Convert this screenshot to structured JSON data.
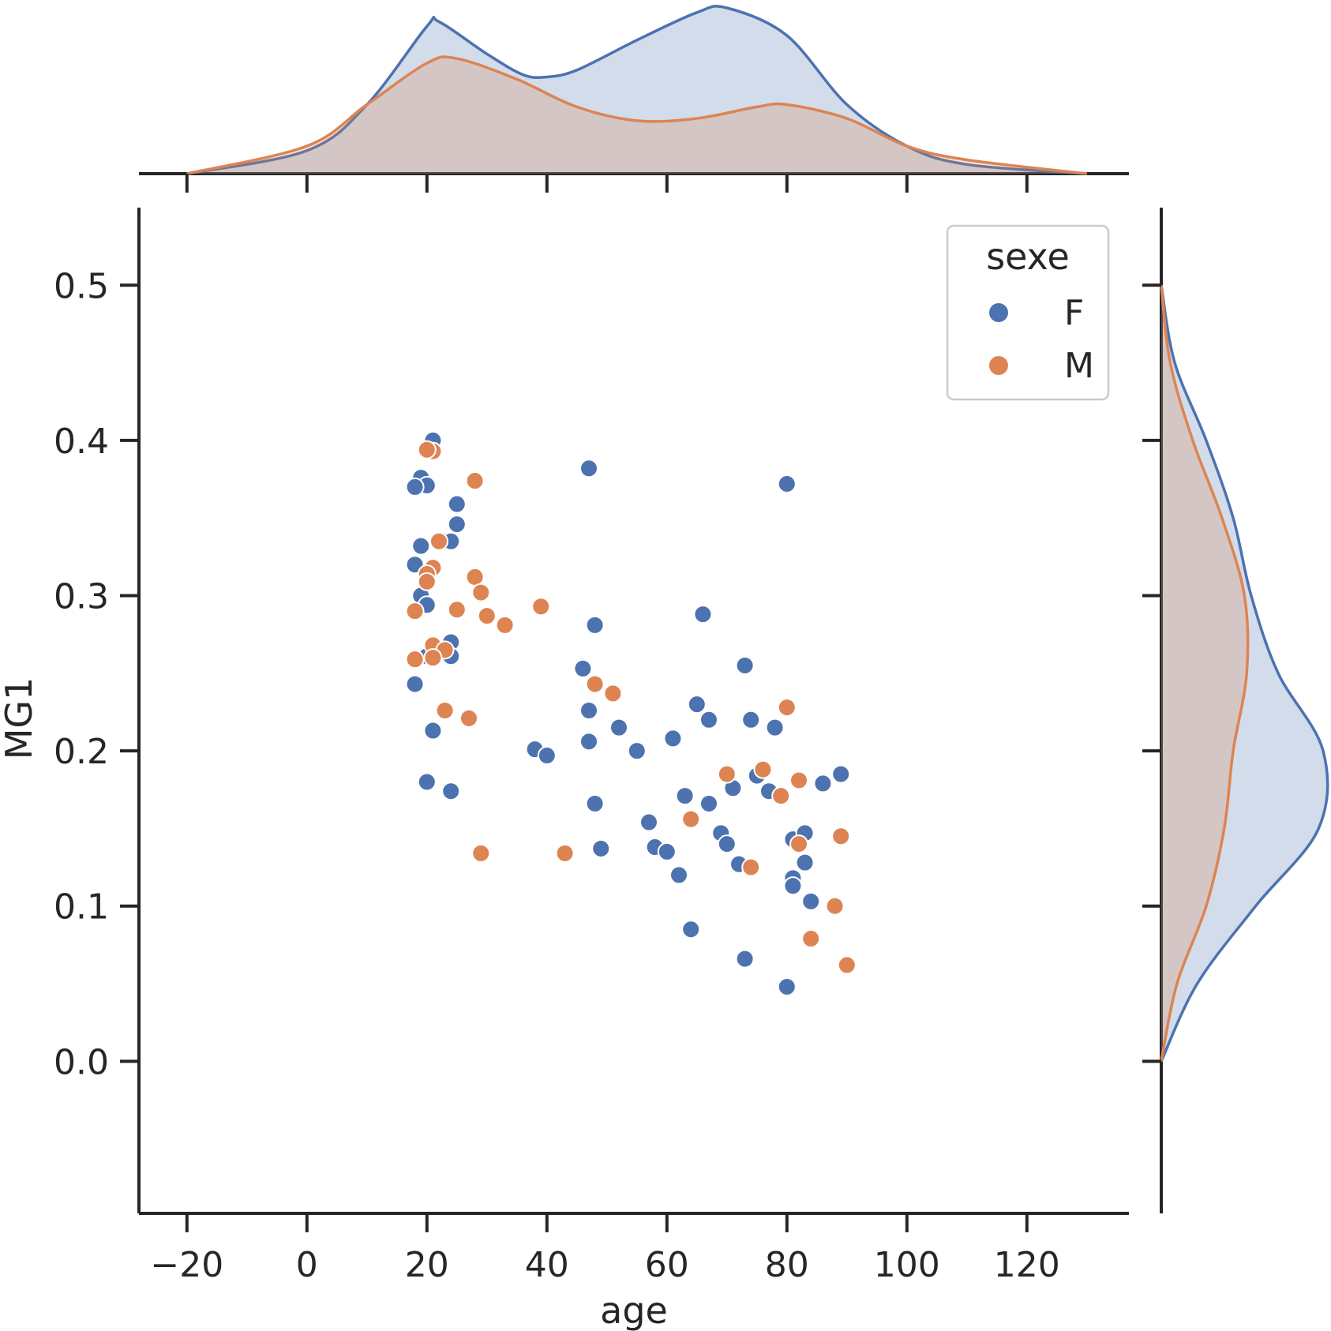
{
  "colors": {
    "F": "#4c72b0",
    "M": "#dd8452",
    "axis": "#262626",
    "text": "#262626"
  },
  "chart_data": {
    "type": "scatter",
    "xlabel": "age",
    "ylabel": "MG1",
    "xlim": [
      -28,
      137
    ],
    "ylim": [
      -0.098,
      0.55
    ],
    "xticks": [
      -20,
      0,
      20,
      40,
      60,
      80,
      100,
      120
    ],
    "xtick_labels": [
      "−20",
      "0",
      "20",
      "40",
      "60",
      "80",
      "100",
      "120"
    ],
    "yticks": [
      0.0,
      0.1,
      0.2,
      0.3,
      0.4,
      0.5
    ],
    "ytick_labels": [
      "0.0",
      "0.1",
      "0.2",
      "0.3",
      "0.4",
      "0.5"
    ],
    "grid": false,
    "legend": {
      "title": "sexe",
      "placement": "top-right",
      "entries": [
        {
          "label": "F",
          "color": "#4c72b0"
        },
        {
          "label": "M",
          "color": "#dd8452"
        }
      ]
    },
    "series": [
      {
        "name": "F",
        "color": "#4c72b0",
        "points": [
          [
            21,
            0.4
          ],
          [
            19,
            0.376
          ],
          [
            20,
            0.371
          ],
          [
            18,
            0.37
          ],
          [
            25,
            0.359
          ],
          [
            25,
            0.346
          ],
          [
            23,
            0.335
          ],
          [
            24,
            0.335
          ],
          [
            19,
            0.332
          ],
          [
            18,
            0.32
          ],
          [
            19,
            0.3
          ],
          [
            20,
            0.294
          ],
          [
            24,
            0.27
          ],
          [
            20,
            0.261
          ],
          [
            24,
            0.261
          ],
          [
            18,
            0.243
          ],
          [
            21,
            0.213
          ],
          [
            20,
            0.18
          ],
          [
            24,
            0.174
          ],
          [
            47,
            0.382
          ],
          [
            48,
            0.281
          ],
          [
            46,
            0.253
          ],
          [
            47,
            0.226
          ],
          [
            47,
            0.206
          ],
          [
            38,
            0.201
          ],
          [
            40,
            0.197
          ],
          [
            48,
            0.166
          ],
          [
            49,
            0.137
          ],
          [
            52,
            0.215
          ],
          [
            55,
            0.2
          ],
          [
            61,
            0.208
          ],
          [
            57,
            0.154
          ],
          [
            58,
            0.138
          ],
          [
            60,
            0.135
          ],
          [
            62,
            0.12
          ],
          [
            64,
            0.085
          ],
          [
            66,
            0.288
          ],
          [
            65,
            0.23
          ],
          [
            67,
            0.22
          ],
          [
            63,
            0.171
          ],
          [
            67,
            0.166
          ],
          [
            69,
            0.147
          ],
          [
            70,
            0.14
          ],
          [
            72,
            0.127
          ],
          [
            73,
            0.066
          ],
          [
            73,
            0.255
          ],
          [
            74,
            0.22
          ],
          [
            78,
            0.215
          ],
          [
            75,
            0.184
          ],
          [
            71,
            0.176
          ],
          [
            77,
            0.174
          ],
          [
            80,
            0.372
          ],
          [
            80,
            0.048
          ],
          [
            81,
            0.143
          ],
          [
            81,
            0.118
          ],
          [
            81,
            0.113
          ],
          [
            83,
            0.147
          ],
          [
            83,
            0.128
          ],
          [
            84,
            0.103
          ],
          [
            86,
            0.179
          ],
          [
            89,
            0.185
          ]
        ]
      },
      {
        "name": "M",
        "color": "#dd8452",
        "points": [
          [
            21,
            0.393
          ],
          [
            20,
            0.394
          ],
          [
            28,
            0.374
          ],
          [
            22,
            0.335
          ],
          [
            21,
            0.318
          ],
          [
            20,
            0.314
          ],
          [
            20,
            0.309
          ],
          [
            28,
            0.312
          ],
          [
            29,
            0.302
          ],
          [
            25,
            0.291
          ],
          [
            18,
            0.29
          ],
          [
            30,
            0.287
          ],
          [
            33,
            0.281
          ],
          [
            21,
            0.268
          ],
          [
            23,
            0.265
          ],
          [
            21,
            0.26
          ],
          [
            18,
            0.259
          ],
          [
            23,
            0.226
          ],
          [
            27,
            0.221
          ],
          [
            29,
            0.134
          ],
          [
            39,
            0.293
          ],
          [
            43,
            0.134
          ],
          [
            48,
            0.243
          ],
          [
            51,
            0.237
          ],
          [
            64,
            0.156
          ],
          [
            70,
            0.185
          ],
          [
            76,
            0.188
          ],
          [
            79,
            0.171
          ],
          [
            74,
            0.125
          ],
          [
            80,
            0.228
          ],
          [
            82,
            0.181
          ],
          [
            82,
            0.14
          ],
          [
            84,
            0.079
          ],
          [
            88,
            0.1
          ],
          [
            89,
            0.145
          ],
          [
            90,
            0.062
          ]
        ]
      }
    ],
    "marginal_x_kde": {
      "F": [
        [
          -20,
          0.0
        ],
        [
          0,
          0.1
        ],
        [
          10,
          0.3
        ],
        [
          20,
          0.64
        ],
        [
          22,
          0.66
        ],
        [
          30,
          0.52
        ],
        [
          36,
          0.43
        ],
        [
          40,
          0.42
        ],
        [
          45,
          0.45
        ],
        [
          55,
          0.58
        ],
        [
          65,
          0.7
        ],
        [
          70,
          0.72
        ],
        [
          80,
          0.6
        ],
        [
          90,
          0.3
        ],
        [
          100,
          0.12
        ],
        [
          110,
          0.04
        ],
        [
          130,
          0.0
        ]
      ],
      "M": [
        [
          -20,
          0.0
        ],
        [
          0,
          0.12
        ],
        [
          10,
          0.3
        ],
        [
          20,
          0.48
        ],
        [
          25,
          0.5
        ],
        [
          35,
          0.41
        ],
        [
          45,
          0.29
        ],
        [
          55,
          0.23
        ],
        [
          65,
          0.24
        ],
        [
          75,
          0.29
        ],
        [
          80,
          0.3
        ],
        [
          90,
          0.24
        ],
        [
          100,
          0.12
        ],
        [
          110,
          0.06
        ],
        [
          130,
          0.0
        ]
      ]
    },
    "marginal_y_kde": {
      "F": [
        [
          0.0,
          0.0
        ],
        [
          0.05,
          0.16
        ],
        [
          0.1,
          0.42
        ],
        [
          0.15,
          0.7
        ],
        [
          0.2,
          0.72
        ],
        [
          0.25,
          0.52
        ],
        [
          0.3,
          0.4
        ],
        [
          0.35,
          0.32
        ],
        [
          0.4,
          0.2
        ],
        [
          0.45,
          0.06
        ],
        [
          0.5,
          0.0
        ]
      ],
      "M": [
        [
          0.0,
          0.0
        ],
        [
          0.05,
          0.07
        ],
        [
          0.1,
          0.2
        ],
        [
          0.15,
          0.28
        ],
        [
          0.2,
          0.32
        ],
        [
          0.25,
          0.38
        ],
        [
          0.3,
          0.37
        ],
        [
          0.35,
          0.27
        ],
        [
          0.4,
          0.14
        ],
        [
          0.45,
          0.04
        ],
        [
          0.5,
          0.0
        ]
      ]
    }
  }
}
